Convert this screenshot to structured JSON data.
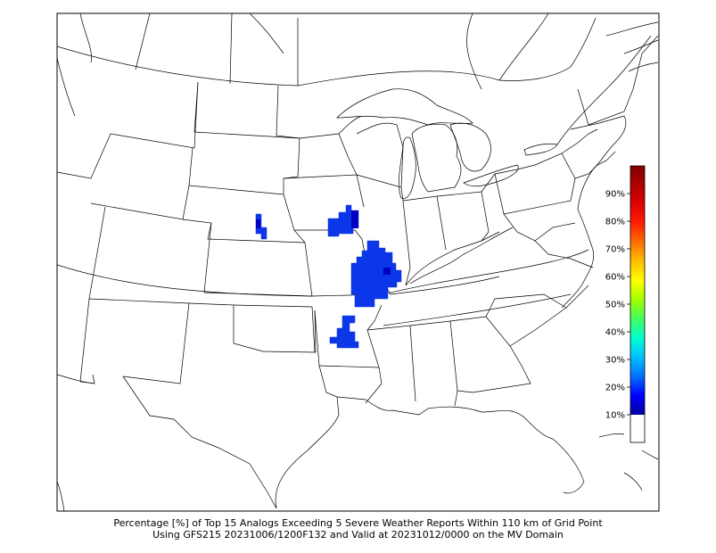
{
  "caption": {
    "line1": "Percentage [%] of Top 15 Analogs Exceeding 5 Severe Weather Reports Within 110 km of Grid Point",
    "line2": "Using GFS215 20231006/1200F132 and Valid at 20231012/0000 on the MV Domain"
  },
  "colorbar": {
    "ticks": [
      "10%",
      "20%",
      "30%",
      "40%",
      "50%",
      "60%",
      "70%",
      "80%",
      "90%"
    ],
    "tick_values": [
      10,
      20,
      30,
      40,
      50,
      60,
      70,
      80,
      90
    ],
    "min": 0,
    "max": 100,
    "colors": [
      "#0000a0",
      "#0000ff",
      "#0070ff",
      "#00c0ff",
      "#00ffd0",
      "#40ff60",
      "#a0ff00",
      "#ffff00",
      "#ffc000",
      "#ff7000",
      "#ff2000",
      "#e00000",
      "#b00000",
      "#800000"
    ]
  },
  "probability_fill_color": "#0b37e8",
  "probability_dark_color": "#0000c0"
}
